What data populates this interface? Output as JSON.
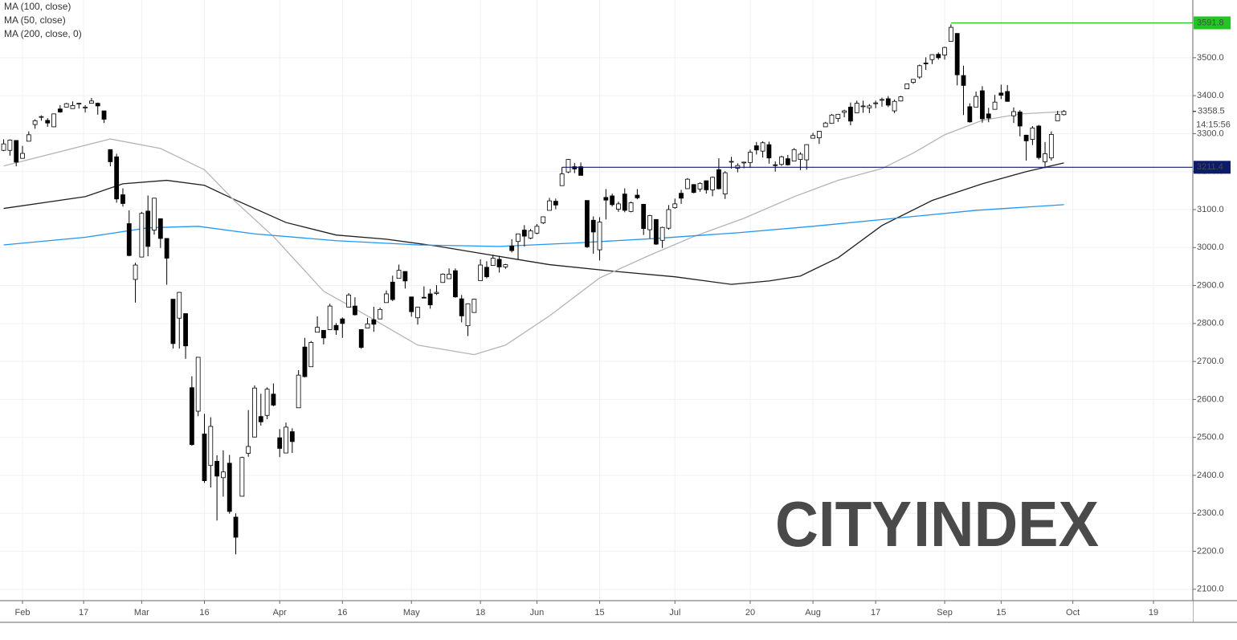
{
  "chart_data": {
    "type": "candlestick",
    "categories": [
      "Jan 29",
      "Jan 30",
      "Jan 31",
      "Feb 3",
      "Feb 4",
      "Feb 5",
      "Feb 6",
      "Feb 7",
      "Feb 10",
      "Feb 11",
      "Feb 12",
      "Feb 13",
      "Feb 14",
      "Feb 18",
      "Feb 19",
      "Feb 20",
      "Feb 21",
      "Feb 24",
      "Feb 25",
      "Feb 26",
      "Feb 27",
      "Feb 28",
      "Mar 2",
      "Mar 3",
      "Mar 4",
      "Mar 5",
      "Mar 6",
      "Mar 9",
      "Mar 10",
      "Mar 11",
      "Mar 12",
      "Mar 13",
      "Mar 16",
      "Mar 17",
      "Mar 18",
      "Mar 19",
      "Mar 20",
      "Mar 23",
      "Mar 24",
      "Mar 25",
      "Mar 26",
      "Mar 27",
      "Mar 30",
      "Mar 31",
      "Apr 1",
      "Apr 2",
      "Apr 3",
      "Apr 6",
      "Apr 7",
      "Apr 8",
      "Apr 9",
      "Apr 13",
      "Apr 14",
      "Apr 15",
      "Apr 16",
      "Apr 17",
      "Apr 20",
      "Apr 21",
      "Apr 22",
      "Apr 23",
      "Apr 24",
      "Apr 27",
      "Apr 28",
      "Apr 29",
      "Apr 30",
      "May 1",
      "May 4",
      "May 5",
      "May 6",
      "May 7",
      "May 8",
      "May 11",
      "May 12",
      "May 13",
      "May 14",
      "May 15",
      "May 18",
      "May 19",
      "May 20",
      "May 21",
      "May 22",
      "May 26",
      "May 27",
      "May 28",
      "May 29",
      "Jun 1",
      "Jun 2",
      "Jun 3",
      "Jun 4",
      "Jun 5",
      "Jun 8",
      "Jun 9",
      "Jun 10",
      "Jun 11",
      "Jun 12",
      "Jun 15",
      "Jun 16",
      "Jun 17",
      "Jun 18",
      "Jun 19",
      "Jun 22",
      "Jun 23",
      "Jun 24",
      "Jun 25",
      "Jun 26",
      "Jun 29",
      "Jun 30",
      "Jul 1",
      "Jul 2",
      "Jul 6",
      "Jul 7",
      "Jul 8",
      "Jul 9",
      "Jul 10",
      "Jul 13",
      "Jul 14",
      "Jul 15",
      "Jul 16",
      "Jul 17",
      "Jul 20",
      "Jul 21",
      "Jul 22",
      "Jul 23",
      "Jul 24",
      "Jul 27",
      "Jul 28",
      "Jul 29",
      "Jul 30",
      "Jul 31",
      "Aug 3",
      "Aug 4",
      "Aug 5",
      "Aug 6",
      "Aug 7",
      "Aug 10",
      "Aug 11",
      "Aug 12",
      "Aug 13",
      "Aug 14",
      "Aug 17",
      "Aug 18",
      "Aug 19",
      "Aug 20",
      "Aug 21",
      "Aug 24",
      "Aug 25",
      "Aug 26",
      "Aug 27",
      "Aug 28",
      "Aug 31",
      "Sep 1",
      "Sep 2",
      "Sep 3",
      "Sep 4",
      "Sep 8",
      "Sep 9",
      "Sep 10",
      "Sep 11",
      "Sep 14",
      "Sep 15",
      "Sep 16",
      "Sep 17",
      "Sep 18",
      "Sep 21",
      "Sep 22",
      "Sep 23",
      "Sep 24",
      "Sep 25",
      "Sep 28",
      "Sep 29"
    ],
    "open": [
      3256,
      3256,
      3282,
      3235,
      3280,
      3324,
      3344,
      3335,
      3318,
      3365,
      3370,
      3366,
      3378,
      3369,
      3380,
      3380,
      3360,
      3258,
      3239,
      3139,
      3063,
      2916,
      2975,
      3096,
      3046,
      3076,
      3024,
      2864,
      2814,
      2826,
      2631,
      2569,
      2509,
      2426,
      2437,
      2394,
      2432,
      2290,
      2345,
      2458,
      2501,
      2555,
      2558,
      2614,
      2499,
      2459,
      2515,
      2578,
      2738,
      2686,
      2777,
      2782,
      2784,
      2795,
      2812,
      2843,
      2846,
      2784,
      2788,
      2810,
      2812,
      2855,
      2909,
      2919,
      2937,
      2870,
      2815,
      2869,
      2878,
      2879,
      2908,
      2918,
      2939,
      2865,
      2794,
      2829,
      2913,
      2948,
      2953,
      2969,
      2949,
      3004,
      3016,
      3046,
      3025,
      3038,
      3065,
      3098,
      3122,
      3163,
      3199,
      3213,
      3213,
      3124,
      3072,
      2994,
      3132,
      3136,
      3101,
      3141,
      3095,
      3138,
      3114,
      3047,
      3074,
      3019,
      3051,
      3105,
      3143,
      3155,
      3166,
      3154,
      3176,
      3152,
      3205,
      3141,
      3226,
      3209,
      3224,
      3224,
      3268,
      3254,
      3271,
      3218,
      3219,
      3234,
      3228,
      3232,
      3231,
      3288,
      3289,
      3318,
      3327,
      3340,
      3356,
      3370,
      3355,
      3372,
      3368,
      3380,
      3388,
      3392,
      3360,
      3386,
      3418,
      3435,
      3449,
      3486,
      3495,
      3509,
      3507,
      3543,
      3564,
      3453,
      3371,
      3370,
      3413,
      3352,
      3364,
      3407,
      3411,
      3347,
      3357,
      3296,
      3285,
      3320,
      3226,
      3236,
      3334,
      3350
    ],
    "high": [
      3285,
      3285,
      3283,
      3268,
      3306,
      3338,
      3348,
      3341,
      3353,
      3375,
      3381,
      3385,
      3381,
      3375,
      3394,
      3382,
      3360,
      3259,
      3247,
      3156,
      3098,
      2960,
      3094,
      3137,
      3131,
      3076,
      3024,
      2864,
      2883,
      2826,
      2661,
      2711,
      2562,
      2553,
      2453,
      2466,
      2454,
      2300,
      2449,
      2572,
      2637,
      2615,
      2632,
      2642,
      2522,
      2539,
      2524,
      2677,
      2762,
      2754,
      2819,
      2782,
      2852,
      2801,
      2816,
      2880,
      2869,
      2785,
      2815,
      2844,
      2842,
      2887,
      2926,
      2955,
      2931,
      2870,
      2844,
      2898,
      2891,
      2901,
      2932,
      2945,
      2945,
      2875,
      2853,
      2865,
      2969,
      2964,
      2981,
      2978,
      2957,
      3022,
      3037,
      3059,
      3049,
      3062,
      3082,
      3131,
      3129,
      3212,
      3233,
      3223,
      3224,
      3124,
      3082,
      3080,
      3154,
      3142,
      3121,
      3156,
      3121,
      3154,
      3115,
      3086,
      3074,
      3055,
      3112,
      3129,
      3152,
      3183,
      3167,
      3172,
      3175,
      3187,
      3235,
      3201,
      3239,
      3222,
      3226,
      3258,
      3278,
      3280,
      3279,
      3227,
      3242,
      3244,
      3262,
      3251,
      3272,
      3302,
      3307,
      3331,
      3352,
      3352,
      3363,
      3382,
      3387,
      3387,
      3378,
      3387,
      3395,
      3399,
      3390,
      3399,
      3432,
      3444,
      3482,
      3501,
      3509,
      3514,
      3529,
      3588,
      3564,
      3479,
      3380,
      3411,
      3425,
      3368,
      3402,
      3429,
      3428,
      3369,
      3362,
      3297,
      3320,
      3323,
      3278,
      3306,
      3360,
      3362
    ],
    "low": [
      3254,
      3242,
      3214,
      3235,
      3280,
      3313,
      3334,
      3318,
      3317,
      3355,
      3369,
      3366,
      3366,
      3356,
      3380,
      3350,
      3328,
      3214,
      3118,
      3108,
      2977,
      2855,
      2977,
      2977,
      3034,
      2999,
      2902,
      2734,
      2734,
      2707,
      2478,
      2556,
      2380,
      2368,
      2281,
      2344,
      2299,
      2192,
      2345,
      2449,
      2500,
      2531,
      2548,
      2582,
      2448,
      2459,
      2459,
      2578,
      2658,
      2686,
      2777,
      2745,
      2784,
      2770,
      2762,
      2843,
      2821,
      2733,
      2788,
      2778,
      2812,
      2855,
      2859,
      2919,
      2892,
      2818,
      2797,
      2869,
      2839,
      2875,
      2908,
      2918,
      2868,
      2803,
      2767,
      2829,
      2913,
      2919,
      2953,
      2934,
      2944,
      2987,
      2969,
      3003,
      3022,
      3035,
      3062,
      3098,
      3101,
      3163,
      3196,
      3196,
      3190,
      2999,
      2984,
      2966,
      3074,
      3108,
      3094,
      3093,
      3093,
      3127,
      3033,
      3024,
      3007,
      2999,
      3047,
      3102,
      3115,
      3155,
      3143,
      3147,
      3142,
      3135,
      3153,
      3128,
      3208,
      3198,
      3209,
      3210,
      3245,
      3237,
      3221,
      3200,
      3215,
      3216,
      3228,
      3204,
      3205,
      3288,
      3273,
      3318,
      3326,
      3331,
      3343,
      3322,
      3355,
      3355,
      3354,
      3367,
      3371,
      3370,
      3354,
      3385,
      3418,
      3431,
      3444,
      3468,
      3483,
      3495,
      3495,
      3543,
      3427,
      3349,
      3329,
      3370,
      3329,
      3330,
      3364,
      3391,
      3384,
      3328,
      3293,
      3229,
      3270,
      3232,
      3209,
      3229,
      3334,
      3348
    ],
    "close": [
      3273,
      3283,
      3225,
      3248,
      3297,
      3334,
      3345,
      3328,
      3352,
      3357,
      3379,
      3374,
      3380,
      3370,
      3386,
      3373,
      3338,
      3226,
      3128,
      3116,
      2979,
      2954,
      3090,
      3003,
      3130,
      3024,
      2972,
      2747,
      2882,
      2741,
      2481,
      2711,
      2386,
      2529,
      2398,
      2409,
      2305,
      2237,
      2447,
      2476,
      2630,
      2541,
      2627,
      2585,
      2471,
      2527,
      2489,
      2664,
      2660,
      2750,
      2790,
      2762,
      2846,
      2783,
      2800,
      2875,
      2823,
      2737,
      2799,
      2798,
      2837,
      2878,
      2863,
      2940,
      2912,
      2831,
      2843,
      2868,
      2849,
      2882,
      2930,
      2930,
      2870,
      2820,
      2852,
      2864,
      2954,
      2923,
      2972,
      2949,
      2955,
      2992,
      3036,
      3030,
      3044,
      3056,
      3081,
      3123,
      3112,
      3194,
      3232,
      3207,
      3190,
      3002,
      3041,
      3067,
      3125,
      3113,
      3115,
      3098,
      3118,
      3131,
      3050,
      3084,
      3009,
      3053,
      3100,
      3115,
      3130,
      3180,
      3145,
      3169,
      3152,
      3185,
      3155,
      3197,
      3227,
      3216,
      3225,
      3251,
      3257,
      3276,
      3236,
      3216,
      3239,
      3218,
      3258,
      3246,
      3271,
      3295,
      3306,
      3328,
      3349,
      3351,
      3360,
      3333,
      3380,
      3373,
      3373,
      3381,
      3390,
      3375,
      3385,
      3397,
      3431,
      3443,
      3479,
      3484,
      3508,
      3500,
      3527,
      3580,
      3455,
      3427,
      3331,
      3398,
      3339,
      3341,
      3383,
      3401,
      3385,
      3358,
      3320,
      3281,
      3315,
      3237,
      3247,
      3298,
      3351,
      3358.5
    ],
    "up_color": "#ffffff",
    "down_color": "#000000",
    "ylim": [
      2070,
      3652
    ],
    "yticks": [
      {
        "value": 2100,
        "label": "2100.0"
      },
      {
        "value": 2200,
        "label": "2200.0"
      },
      {
        "value": 2300,
        "label": "2300.0"
      },
      {
        "value": 2400,
        "label": "2400.0"
      },
      {
        "value": 2500,
        "label": "2500.0"
      },
      {
        "value": 2600,
        "label": "2600.0"
      },
      {
        "value": 2700,
        "label": "2700.0"
      },
      {
        "value": 2800,
        "label": "2800.0"
      },
      {
        "value": 2900,
        "label": "2900.0"
      },
      {
        "value": 3000,
        "label": "3000.0"
      },
      {
        "value": 3100,
        "label": "3100.0"
      },
      {
        "value": 3200,
        "label": "3200.0"
      },
      {
        "value": 3300,
        "label": "3300.0"
      },
      {
        "value": 3400,
        "label": "3400.0"
      },
      {
        "value": 3500,
        "label": "3500.0"
      }
    ],
    "xticks": [
      {
        "value": "Feb 3",
        "label": "Feb"
      },
      {
        "value": "Feb 17",
        "label": "17"
      },
      {
        "value": "Mar 2",
        "label": "Mar"
      },
      {
        "value": "Mar 16",
        "label": "16"
      },
      {
        "value": "Apr 1",
        "label": "Apr"
      },
      {
        "value": "Apr 16",
        "label": "16"
      },
      {
        "value": "May 1",
        "label": "May"
      },
      {
        "value": "May 18",
        "label": "18"
      },
      {
        "value": "Jun 1",
        "label": "Jun"
      },
      {
        "value": "Jun 15",
        "label": "15"
      },
      {
        "value": "Jul 1",
        "label": "Jul"
      },
      {
        "value": "Jul 20",
        "label": "20"
      },
      {
        "value": "Aug 3",
        "label": "Aug"
      },
      {
        "value": "Aug 17",
        "label": "17"
      },
      {
        "value": "Sep 1",
        "label": "Sep"
      },
      {
        "value": "Sep 15",
        "label": "15"
      },
      {
        "value": "Oct 1",
        "label": "Oct"
      },
      {
        "value": "Oct 19",
        "label": "19"
      }
    ],
    "grid": true,
    "indicators": [
      {
        "name": "MA (100, close)",
        "color": "#1f1f1f",
        "x": [
          "Jan 29",
          "Feb 18",
          "Feb 26",
          "Mar 6",
          "Mar 16",
          "Mar 23",
          "Apr 2",
          "Apr 15",
          "Apr 27",
          "May 7",
          "May 19",
          "Jun 3",
          "Jun 17",
          "Jul 1",
          "Jul 15",
          "Jul 23",
          "Jul 30",
          "Aug 7",
          "Aug 18",
          "Aug 28",
          "Sep 10",
          "Sep 21",
          "Sep 29"
        ],
        "values": [
          3103,
          3134,
          3168,
          3177,
          3164,
          3125,
          3066,
          3033,
          3022,
          3004,
          2982,
          2955,
          2938,
          2923,
          2903,
          2912,
          2925,
          2973,
          3058,
          3124,
          3168,
          3200,
          3223
        ]
      },
      {
        "name": "MA (50, close)",
        "color": "#b4b4b4",
        "x": [
          "Jan 29",
          "Feb 24",
          "Mar 5",
          "Mar 16",
          "Mar 23",
          "Mar 31",
          "Apr 13",
          "Apr 22",
          "May 4",
          "May 15",
          "May 22",
          "Jun 3",
          "Jun 15",
          "Jun 25",
          "Jul 7",
          "Jul 17",
          "Jul 29",
          "Aug 7",
          "Aug 18",
          "Aug 25",
          "Sep 1",
          "Sep 10",
          "Sep 18",
          "Sep 29"
        ],
        "values": [
          3215,
          3286,
          3261,
          3205,
          3120,
          3029,
          2885,
          2820,
          2743,
          2718,
          2743,
          2820,
          2920,
          2980,
          3029,
          3077,
          3134,
          3177,
          3208,
          3249,
          3297,
          3335,
          3352,
          3358
        ]
      },
      {
        "name": "MA (200, close, 0)",
        "color": "#2196f3",
        "x": [
          "Jan 29",
          "Feb 18",
          "Mar 3",
          "Mar 13",
          "Mar 26",
          "Apr 15",
          "May 4",
          "May 21",
          "Jun 9",
          "Jun 26",
          "Jul 16",
          "Aug 3",
          "Aug 20",
          "Sep 9",
          "Sep 29"
        ],
        "values": [
          3007,
          3027,
          3052,
          3056,
          3036,
          3018,
          3007,
          3003,
          3012,
          3024,
          3039,
          3056,
          3077,
          3098,
          3113
        ]
      }
    ],
    "levels": [
      {
        "value": 3591.8,
        "color": "#22c522"
      },
      {
        "value": 3211.4,
        "color": "#0d1b6b"
      }
    ],
    "last_price": 3358.5,
    "countdown": "14:15:56",
    "watermark": [
      {
        "text": "CITY",
        "color": "#111111"
      },
      {
        "text": "INDEX",
        "color": "#f2d200"
      }
    ]
  }
}
